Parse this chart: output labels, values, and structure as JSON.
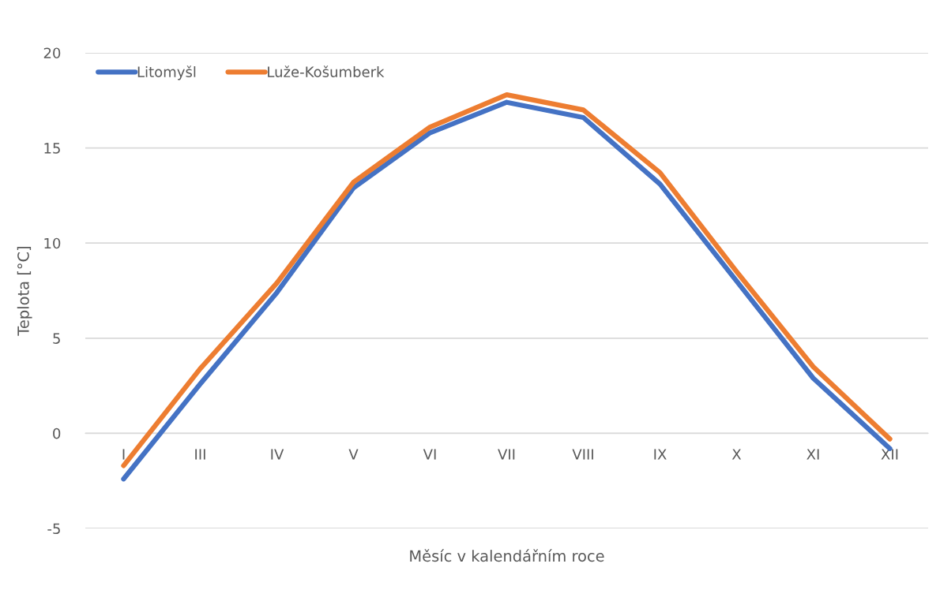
{
  "chart_data": {
    "type": "line",
    "xlabel": "Měsíc v kalendářním roce",
    "ylabel": "Teplota [°C]",
    "categories": [
      "I",
      "III",
      "IV",
      "V",
      "VI",
      "VII",
      "VIII",
      "IX",
      "X",
      "XI",
      "XII"
    ],
    "series": [
      {
        "name": "Litomyšl",
        "color": "#4472c4",
        "values": [
          -2.4,
          2.6,
          7.4,
          12.9,
          15.8,
          17.4,
          16.6,
          13.1,
          8.0,
          2.9,
          -0.8
        ]
      },
      {
        "name": "Luže-Košumberk",
        "color": "#ed7d31",
        "values": [
          -1.7,
          3.4,
          7.9,
          13.2,
          16.1,
          17.8,
          17.0,
          13.7,
          8.5,
          3.5,
          -0.3
        ]
      }
    ],
    "ylim": [
      -5,
      20
    ],
    "yticks": [
      -5,
      0,
      5,
      10,
      15,
      20
    ],
    "grid": "y",
    "legend": "top left",
    "marker": "none",
    "line_style": "solid"
  }
}
